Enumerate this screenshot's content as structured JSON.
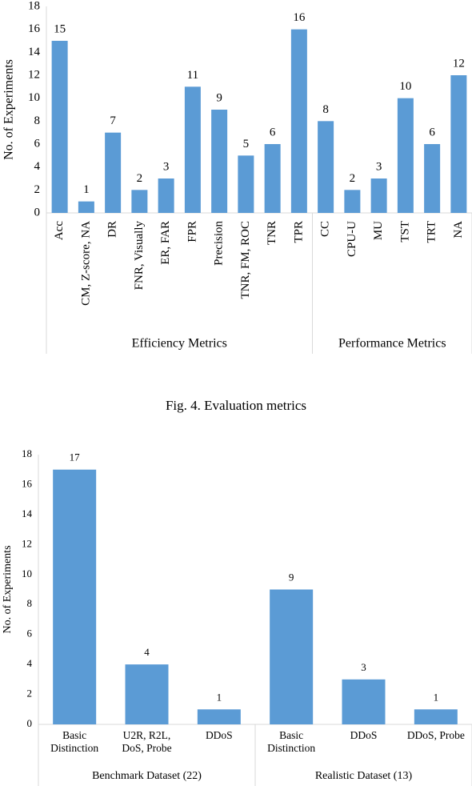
{
  "chart_data": [
    {
      "type": "bar",
      "ylabel": "No. of Experiments",
      "color": "#5b9bd5",
      "ylim": [
        0,
        18
      ],
      "yticks": [
        0,
        2,
        4,
        6,
        8,
        10,
        12,
        14,
        16,
        18
      ],
      "groups": [
        {
          "name": "Efficiency Metrics",
          "categories": [
            "Acc",
            "CM, Z-score, NA",
            "DR",
            "FNR, Visually",
            "ER, FAR",
            "FPR",
            "Precision",
            "TNR, FM, ROC",
            "TNR",
            "TPR"
          ],
          "values": [
            15,
            1,
            7,
            2,
            3,
            11,
            9,
            5,
            6,
            16
          ]
        },
        {
          "name": "Performance Metrics",
          "categories": [
            "CC",
            "CPU-U",
            "MU",
            "TST",
            "TRT",
            "NA"
          ],
          "values": [
            8,
            2,
            3,
            10,
            6,
            12
          ]
        }
      ]
    },
    {
      "type": "bar",
      "ylabel": "No. of Experiments",
      "color": "#5b9bd5",
      "ylim": [
        0,
        18
      ],
      "yticks": [
        0,
        2,
        4,
        6,
        8,
        10,
        12,
        14,
        16,
        18
      ],
      "groups": [
        {
          "name": "Benchmark Dataset (22)",
          "categories": [
            "Basic Distinction",
            "U2R, R2L, DoS, Probe",
            "DDoS"
          ],
          "values": [
            17,
            4,
            1
          ]
        },
        {
          "name": "Realistic Dataset (13)",
          "categories": [
            "Basic Distinction",
            "DDoS",
            "DDoS, Probe"
          ],
          "values": [
            9,
            3,
            1
          ]
        }
      ]
    }
  ],
  "caption": "Fig. 4.  Evaluation metrics"
}
